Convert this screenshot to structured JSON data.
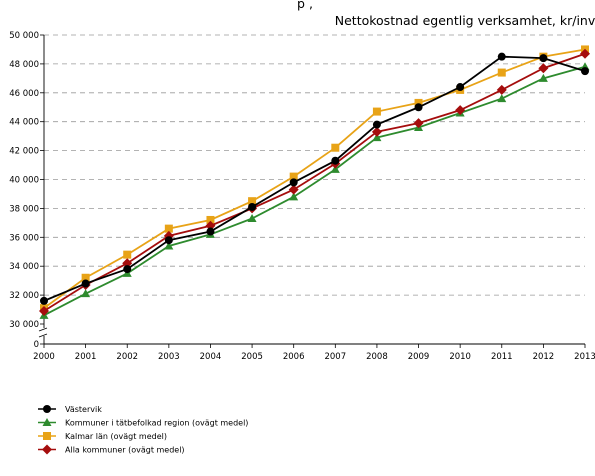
{
  "chart_data": {
    "type": "line",
    "title": "Nettokostnad egentlig verksamhet, kr/inv",
    "title_partial": "p      ,",
    "x": [
      "2000",
      "2001",
      "2002",
      "2003",
      "2004",
      "2005",
      "2006",
      "2007",
      "2008",
      "2009",
      "2010",
      "2011",
      "2012",
      "2013"
    ],
    "ylim": [
      30000,
      50000
    ],
    "y_zero_label": "0",
    "y_axis_break": true,
    "y_ticks": [
      30000,
      32000,
      34000,
      36000,
      38000,
      40000,
      42000,
      44000,
      46000,
      48000,
      50000
    ],
    "y_tick_labels": [
      "30 000",
      "32 000",
      "34 000",
      "36 000",
      "38 000",
      "40 000",
      "42 000",
      "44 000",
      "46 000",
      "48 000",
      "50 000"
    ],
    "grid": "horizontal dashed",
    "legend_position": "bottom-left",
    "series": [
      {
        "name": "Västervik",
        "color": "#000000",
        "marker": "circle",
        "values": [
          31600,
          32800,
          33800,
          35800,
          36400,
          38100,
          39800,
          41300,
          43800,
          45000,
          46400,
          48500,
          48400,
          47500
        ]
      },
      {
        "name": "Kommuner i tätbefolkad region (ovägt medel)",
        "color": "#2e8b2e",
        "marker": "triangle",
        "values": [
          30600,
          32100,
          33500,
          35400,
          36200,
          37300,
          38800,
          40700,
          42900,
          43600,
          44600,
          45600,
          47000,
          47800
        ]
      },
      {
        "name": "Kalmar län (ovägt medel)",
        "color": "#e8a317",
        "marker": "square",
        "values": [
          31100,
          33200,
          34800,
          36600,
          37200,
          38500,
          40200,
          42200,
          44700,
          45300,
          46200,
          47400,
          48500,
          49000
        ]
      },
      {
        "name": "Alla kommuner (ovägt medel)",
        "color": "#a50d0d",
        "marker": "diamond",
        "values": [
          30900,
          32700,
          34200,
          36100,
          36800,
          38000,
          39300,
          41100,
          43300,
          43900,
          44800,
          46200,
          47700,
          48700
        ]
      }
    ]
  }
}
